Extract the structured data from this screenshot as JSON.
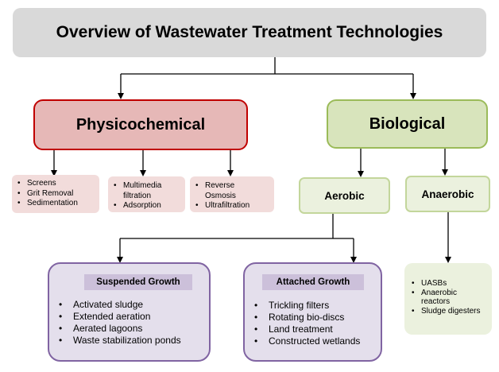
{
  "title": "Overview of Wastewater Treatment Technologies",
  "physicochemical": {
    "label": "Physicochemical",
    "groups": [
      [
        "Screens",
        "Grit Removal",
        "Sedimentation"
      ],
      [
        "Multimedia filtration",
        "Adsorption"
      ],
      [
        "Reverse Osmosis",
        "Ultrafiltration"
      ]
    ]
  },
  "biological": {
    "label": "Biological",
    "aerobic": {
      "label": "Aerobic",
      "suspended": {
        "heading": "Suspended Growth",
        "items": [
          "Activated sludge",
          "Extended aeration",
          "Aerated lagoons",
          "Waste stabilization ponds"
        ]
      },
      "attached": {
        "heading": "Attached Growth",
        "items": [
          "Trickling filters",
          "Rotating bio-discs",
          "Land treatment",
          "Constructed wetlands"
        ]
      }
    },
    "anaerobic": {
      "label": "Anaerobic",
      "items": [
        "UASBs",
        "Anaerobic reactors",
        "Sludge digesters"
      ]
    }
  },
  "colors": {
    "connector": "#000000",
    "title_fill": "#d9d9d9",
    "phys_fill": "#e6b8b7",
    "phys_border": "#c00000",
    "bio_fill": "#d8e4bc",
    "bio_border": "#9bbb59",
    "purple_fill": "#e4dfec",
    "purple_border": "#8064a2"
  }
}
